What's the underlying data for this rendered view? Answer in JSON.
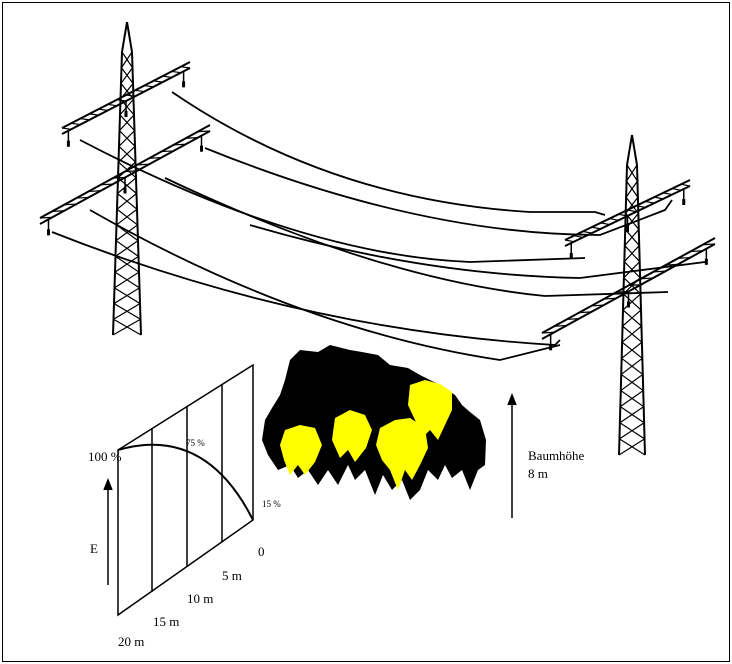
{
  "diagram": {
    "percent_labels": [
      "100 %",
      "75 %",
      "15 %"
    ],
    "axis_label": "E",
    "distance_labels": [
      "0",
      "5 m",
      "10 m",
      "15 m",
      "20 m"
    ],
    "tree_height": {
      "label": "Baumhöhe",
      "value": "8 m"
    }
  }
}
